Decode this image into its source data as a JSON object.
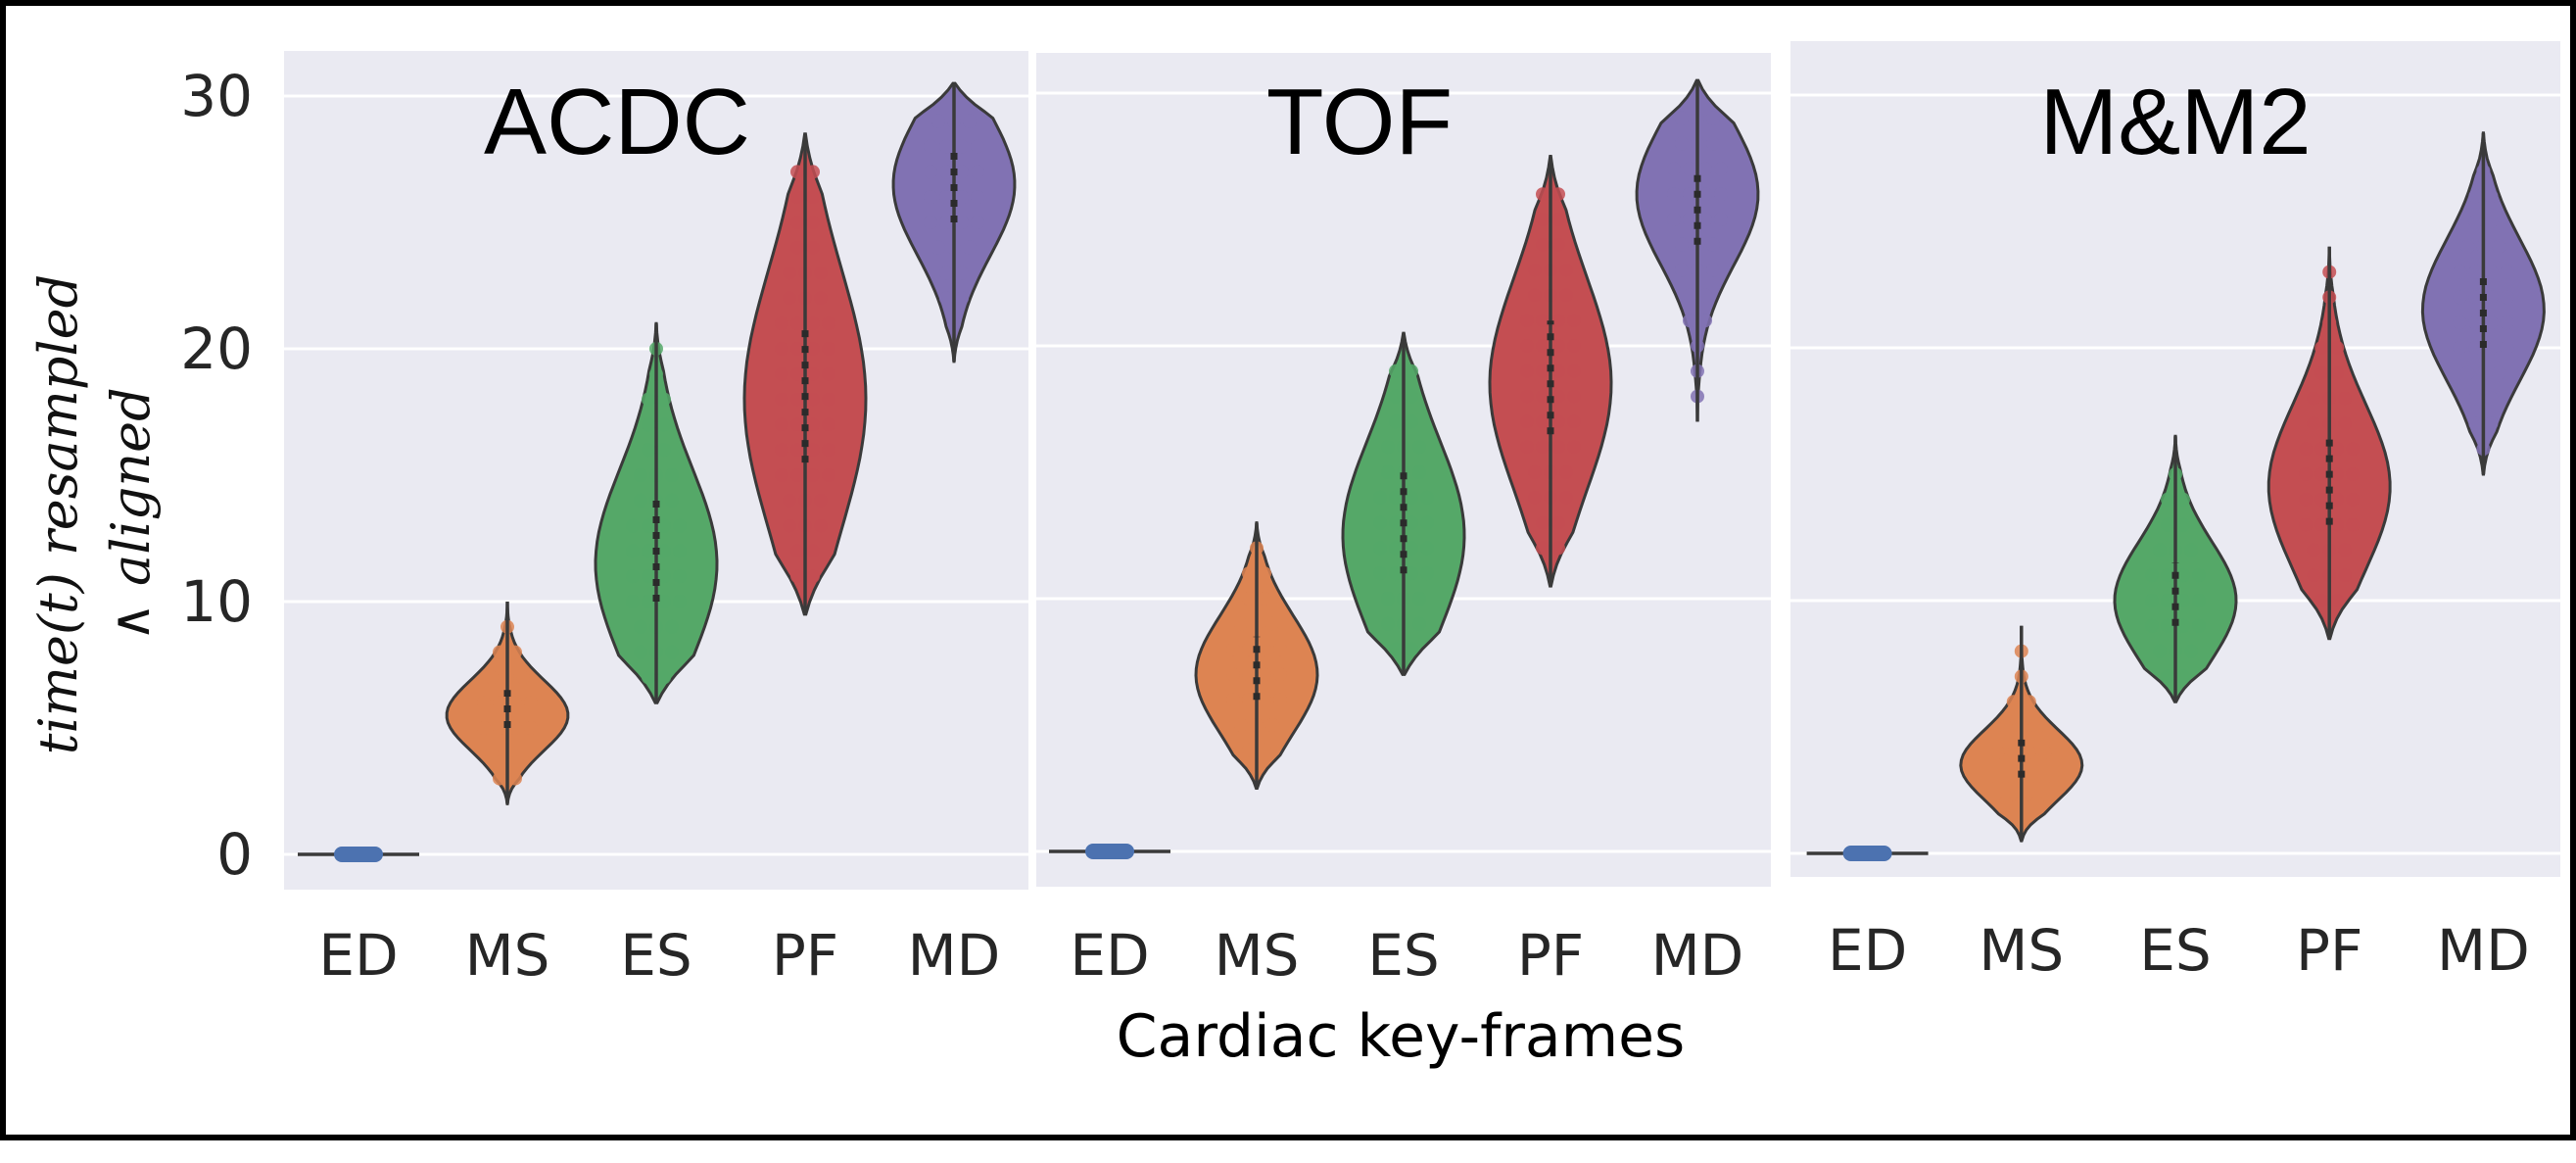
{
  "chart_data": {
    "type": "violin",
    "xlabel": "Cardiac key-frames",
    "ylabel_lines": [
      "time(t) resampled",
      "∧ aligned"
    ],
    "ylim": [
      -1.5,
      31.5
    ],
    "yticks": [
      0,
      10,
      20,
      30
    ],
    "categories": [
      "ED",
      "MS",
      "ES",
      "PF",
      "MD"
    ],
    "colors": {
      "ED": "#4c72b0",
      "MS": "#dd8452",
      "ES": "#55a868",
      "PF": "#c44e52",
      "MD": "#8172b3"
    },
    "panels": [
      {
        "title": "ACDC",
        "violins": [
          {
            "category": "ED",
            "min": 0,
            "max": 0,
            "q1": 0,
            "median": 0,
            "q3": 0
          },
          {
            "category": "MS",
            "min": 2,
            "max": 10,
            "q1": 5,
            "median": 5.5,
            "q3": 6.5
          },
          {
            "category": "ES",
            "min": 6,
            "max": 21,
            "q1": 10,
            "median": 11.5,
            "q3": 14
          },
          {
            "category": "PF",
            "min": 9.5,
            "max": 28.5,
            "q1": 15.5,
            "median": 18,
            "q3": 21
          },
          {
            "category": "MD",
            "min": 19.5,
            "max": 30.5,
            "q1": 25,
            "median": 26.5,
            "q3": 28
          }
        ]
      },
      {
        "title": "TOF",
        "violins": [
          {
            "category": "ED",
            "min": 0,
            "max": 0,
            "q1": 0,
            "median": 0,
            "q3": 0
          },
          {
            "category": "MS",
            "min": 2.5,
            "max": 13,
            "q1": 6,
            "median": 7,
            "q3": 8.5
          },
          {
            "category": "ES",
            "min": 7,
            "max": 20.5,
            "q1": 11,
            "median": 12.5,
            "q3": 15
          },
          {
            "category": "PF",
            "min": 10.5,
            "max": 27.5,
            "q1": 16.5,
            "median": 18.5,
            "q3": 21
          },
          {
            "category": "MD",
            "min": 17,
            "max": 30.5,
            "q1": 24,
            "median": 26,
            "q3": 27
          }
        ]
      },
      {
        "title": "M&M2",
        "violins": [
          {
            "category": "ED",
            "min": 0,
            "max": 0,
            "q1": 0,
            "median": 0,
            "q3": 0
          },
          {
            "category": "MS",
            "min": 0.5,
            "max": 9,
            "q1": 3,
            "median": 3.5,
            "q3": 4.5
          },
          {
            "category": "ES",
            "min": 6,
            "max": 16.5,
            "q1": 9,
            "median": 10,
            "q3": 11.5
          },
          {
            "category": "PF",
            "min": 8.5,
            "max": 24,
            "q1": 13,
            "median": 14.5,
            "q3": 16.5
          },
          {
            "category": "MD",
            "min": 15,
            "max": 28.5,
            "q1": 20,
            "median": 21.5,
            "q3": 23
          }
        ]
      }
    ],
    "grid": true,
    "legend": "none"
  }
}
